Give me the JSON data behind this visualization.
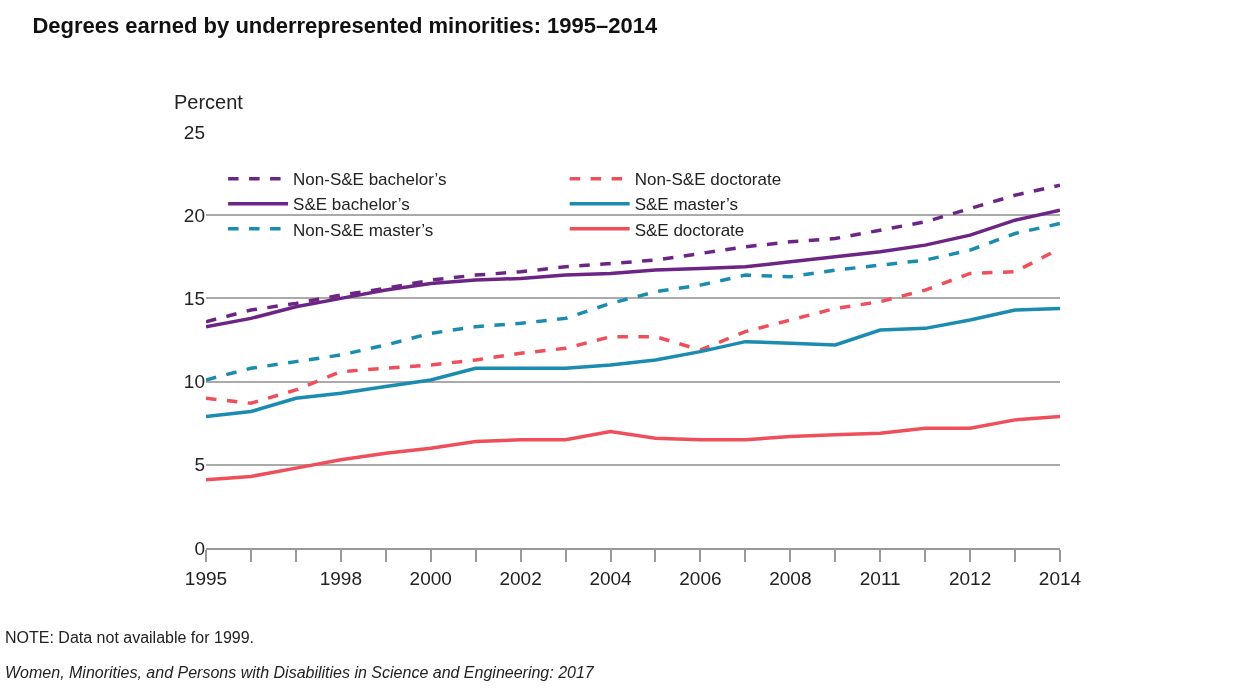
{
  "chart_data": {
    "type": "line",
    "title": "Degrees earned by underrepresented minorities: 1995–2014",
    "ylabel": "Percent",
    "categories": [
      "1995",
      null,
      null,
      "1998",
      null,
      "2000",
      null,
      "2002",
      null,
      "2004",
      null,
      "2006",
      null,
      "2008",
      null,
      "2011",
      null,
      "2012",
      null,
      "2014"
    ],
    "series": [
      {
        "name": "Non-S&E bachelor’s",
        "color": "#6c2585",
        "line_style": "dashed",
        "values": [
          13.6,
          14.3,
          14.7,
          15.2,
          15.6,
          16.1,
          16.4,
          16.6,
          16.9,
          17.1,
          17.3,
          17.7,
          18.1,
          18.4,
          18.6,
          19.1,
          19.6,
          20.4,
          21.2,
          21.8
        ]
      },
      {
        "name": "Non-S&E doctorate",
        "color": "#ee4f5b",
        "line_style": "dashed",
        "values": [
          9.0,
          8.7,
          9.5,
          10.6,
          10.8,
          11.0,
          11.3,
          11.7,
          12.0,
          12.7,
          12.7,
          11.9,
          13.0,
          13.7,
          14.4,
          14.8,
          15.5,
          16.5,
          16.6,
          18.0
        ]
      },
      {
        "name": "S&E bachelor’s",
        "color": "#6c2585",
        "line_style": "solid",
        "values": [
          13.3,
          13.8,
          14.5,
          15.0,
          15.5,
          15.9,
          16.1,
          16.2,
          16.4,
          16.5,
          16.7,
          16.8,
          16.9,
          17.2,
          17.5,
          17.8,
          18.2,
          18.8,
          19.7,
          20.3
        ]
      },
      {
        "name": "S&E master’s",
        "color": "#1b8cb0",
        "line_style": "solid",
        "values": [
          7.9,
          8.2,
          9.0,
          9.3,
          9.7,
          10.1,
          10.8,
          10.8,
          10.8,
          11.0,
          11.3,
          11.8,
          12.4,
          12.3,
          12.2,
          13.1,
          13.2,
          13.7,
          14.3,
          14.4
        ]
      },
      {
        "name": "Non-S&E master’s",
        "color": "#1b8cb0",
        "line_style": "dashed",
        "values": [
          10.1,
          10.8,
          11.2,
          11.6,
          12.2,
          12.9,
          13.3,
          13.5,
          13.8,
          14.7,
          15.4,
          15.8,
          16.4,
          16.3,
          16.7,
          17.0,
          17.3,
          17.9,
          18.9,
          19.5
        ]
      },
      {
        "name": "S&E doctorate",
        "color": "#ee4f5b",
        "line_style": "solid",
        "values": [
          4.1,
          4.3,
          4.8,
          5.3,
          5.7,
          6.0,
          6.4,
          6.5,
          6.5,
          7.0,
          6.6,
          6.5,
          6.5,
          6.7,
          6.8,
          6.9,
          7.2,
          7.2,
          7.7,
          7.9
        ]
      }
    ],
    "ylim": [
      0,
      25
    ],
    "yticks": [
      0,
      5,
      10,
      15,
      20,
      25
    ],
    "grid": "y",
    "legend": "top left",
    "annotations": [
      "NOTE: Data not available for 1999.",
      "Women, Minorities, and Persons with Disabilities in Science and Engineering: 2017"
    ]
  }
}
